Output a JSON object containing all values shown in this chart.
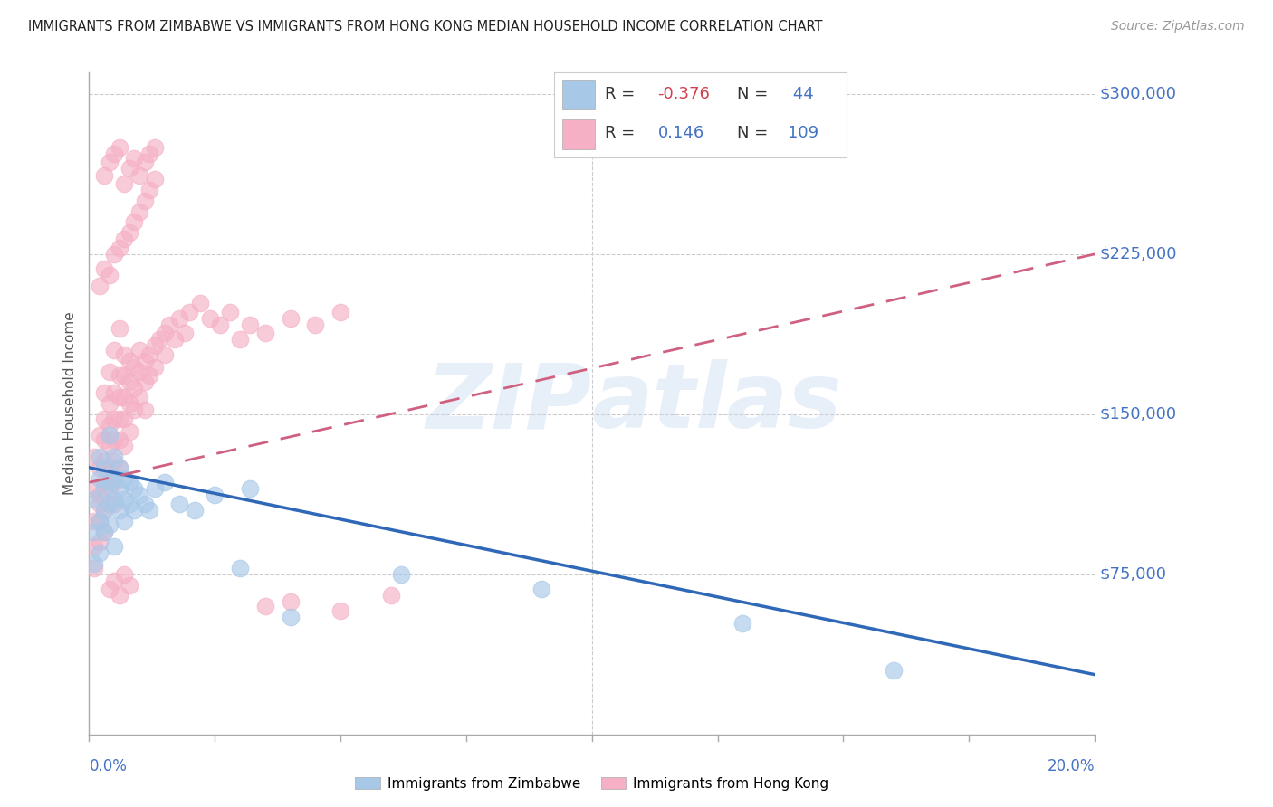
{
  "title": "IMMIGRANTS FROM ZIMBABWE VS IMMIGRANTS FROM HONG KONG MEDIAN HOUSEHOLD INCOME CORRELATION CHART",
  "source": "Source: ZipAtlas.com",
  "ylabel": "Median Household Income",
  "xmin": 0.0,
  "xmax": 0.2,
  "ymin": 0,
  "ymax": 310000,
  "watermark_zip": "ZIP",
  "watermark_atlas": "atlas",
  "r_zimbabwe": -0.376,
  "n_zimbabwe": 44,
  "r_hongkong": 0.146,
  "n_hongkong": 109,
  "color_zimbabwe_dot": "#a8c8e8",
  "color_hongkong_dot": "#f5b0c5",
  "color_line_zimbabwe": "#3068b8",
  "color_line_hongkong": "#d06080",
  "color_blue": "#4472c4",
  "color_red": "#d04050",
  "color_dark": "#333333",
  "color_grid": "#cccccc",
  "color_axis": "#aaaaaa",
  "ytick_vals": [
    75000,
    150000,
    225000,
    300000
  ],
  "ytick_labels": [
    "$75,000",
    "$150,000",
    "$225,000",
    "$300,000"
  ],
  "zimbabwe_x": [
    0.001,
    0.001,
    0.001,
    0.002,
    0.002,
    0.002,
    0.002,
    0.003,
    0.003,
    0.003,
    0.003,
    0.004,
    0.004,
    0.004,
    0.004,
    0.005,
    0.005,
    0.005,
    0.005,
    0.006,
    0.006,
    0.006,
    0.007,
    0.007,
    0.007,
    0.008,
    0.008,
    0.009,
    0.009,
    0.01,
    0.011,
    0.012,
    0.013,
    0.015,
    0.018,
    0.021,
    0.025,
    0.03,
    0.032,
    0.04,
    0.062,
    0.09,
    0.13,
    0.16
  ],
  "zimbabwe_y": [
    95000,
    110000,
    80000,
    120000,
    100000,
    85000,
    130000,
    115000,
    105000,
    95000,
    125000,
    118000,
    108000,
    98000,
    140000,
    130000,
    120000,
    110000,
    88000,
    125000,
    115000,
    105000,
    120000,
    110000,
    100000,
    118000,
    108000,
    115000,
    105000,
    112000,
    108000,
    105000,
    115000,
    118000,
    108000,
    105000,
    112000,
    78000,
    115000,
    55000,
    75000,
    68000,
    52000,
    30000
  ],
  "hongkong_x": [
    0.001,
    0.001,
    0.001,
    0.001,
    0.001,
    0.002,
    0.002,
    0.002,
    0.002,
    0.002,
    0.002,
    0.003,
    0.003,
    0.003,
    0.003,
    0.003,
    0.003,
    0.003,
    0.004,
    0.004,
    0.004,
    0.004,
    0.004,
    0.004,
    0.005,
    0.005,
    0.005,
    0.005,
    0.005,
    0.005,
    0.005,
    0.006,
    0.006,
    0.006,
    0.006,
    0.006,
    0.006,
    0.007,
    0.007,
    0.007,
    0.007,
    0.007,
    0.008,
    0.008,
    0.008,
    0.008,
    0.009,
    0.009,
    0.009,
    0.01,
    0.01,
    0.01,
    0.011,
    0.011,
    0.011,
    0.012,
    0.012,
    0.013,
    0.013,
    0.014,
    0.015,
    0.015,
    0.016,
    0.017,
    0.018,
    0.019,
    0.02,
    0.022,
    0.024,
    0.026,
    0.028,
    0.03,
    0.032,
    0.035,
    0.04,
    0.045,
    0.05,
    0.002,
    0.003,
    0.004,
    0.005,
    0.006,
    0.007,
    0.008,
    0.009,
    0.01,
    0.011,
    0.012,
    0.013,
    0.003,
    0.004,
    0.005,
    0.006,
    0.007,
    0.008,
    0.009,
    0.01,
    0.011,
    0.012,
    0.013,
    0.004,
    0.005,
    0.006,
    0.007,
    0.008,
    0.04,
    0.05,
    0.06,
    0.035
  ],
  "hongkong_y": [
    100000,
    88000,
    115000,
    78000,
    130000,
    125000,
    112000,
    100000,
    90000,
    140000,
    108000,
    148000,
    138000,
    128000,
    118000,
    105000,
    160000,
    95000,
    155000,
    145000,
    135000,
    125000,
    115000,
    170000,
    160000,
    148000,
    138000,
    128000,
    118000,
    108000,
    180000,
    168000,
    158000,
    148000,
    138000,
    125000,
    190000,
    178000,
    168000,
    158000,
    148000,
    135000,
    175000,
    165000,
    155000,
    142000,
    172000,
    162000,
    152000,
    180000,
    170000,
    158000,
    175000,
    165000,
    152000,
    178000,
    168000,
    182000,
    172000,
    185000,
    188000,
    178000,
    192000,
    185000,
    195000,
    188000,
    198000,
    202000,
    195000,
    192000,
    198000,
    185000,
    192000,
    188000,
    195000,
    192000,
    198000,
    210000,
    218000,
    215000,
    225000,
    228000,
    232000,
    235000,
    240000,
    245000,
    250000,
    255000,
    260000,
    262000,
    268000,
    272000,
    275000,
    258000,
    265000,
    270000,
    262000,
    268000,
    272000,
    275000,
    68000,
    72000,
    65000,
    75000,
    70000,
    62000,
    58000,
    65000,
    60000
  ]
}
